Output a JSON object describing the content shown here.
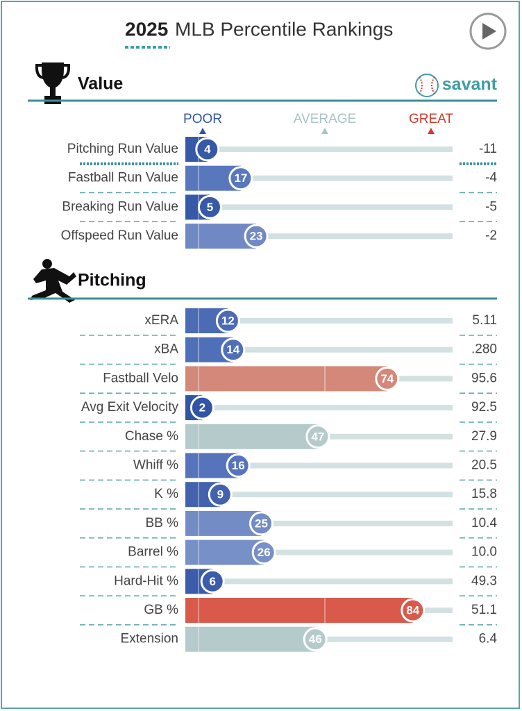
{
  "header": {
    "year": "2025",
    "title": "MLB Percentile Rankings"
  },
  "brand": "savant",
  "scale_labels": {
    "poor": "POOR",
    "average": "AVERAGE",
    "great": "GREAT"
  },
  "xlim": [
    0,
    100
  ],
  "sections": [
    {
      "title": "Value",
      "rows": [
        {
          "label": "Pitching Run Value",
          "percentile": 4,
          "value": "-11",
          "color": "#3659a8"
        },
        {
          "label": "Fastball Run Value",
          "percentile": 17,
          "value": "-4",
          "color": "#5877bd"
        },
        {
          "label": "Breaking Run Value",
          "percentile": 5,
          "value": "-5",
          "color": "#3659a8"
        },
        {
          "label": "Offspeed Run Value",
          "percentile": 23,
          "value": "-2",
          "color": "#7089c4"
        }
      ]
    },
    {
      "title": "Pitching",
      "rows": [
        {
          "label": "xERA",
          "percentile": 12,
          "value": "5.11",
          "color": "#4b6bb5"
        },
        {
          "label": "xBA",
          "percentile": 14,
          "value": ".280",
          "color": "#4f6fb8"
        },
        {
          "label": "Fastball Velo",
          "percentile": 74,
          "value": "95.6",
          "color": "#d4887a"
        },
        {
          "label": "Avg Exit Velocity",
          "percentile": 2,
          "value": "92.5",
          "color": "#2f55a4"
        },
        {
          "label": "Chase %",
          "percentile": 47,
          "value": "27.9",
          "color": "#b5cacb"
        },
        {
          "label": "Whiff %",
          "percentile": 16,
          "value": "20.5",
          "color": "#5574bb"
        },
        {
          "label": "K %",
          "percentile": 9,
          "value": "15.8",
          "color": "#4262ae"
        },
        {
          "label": "BB %",
          "percentile": 25,
          "value": "10.4",
          "color": "#748cc5"
        },
        {
          "label": "Barrel %",
          "percentile": 26,
          "value": "10.0",
          "color": "#7790c7"
        },
        {
          "label": "Hard-Hit %",
          "percentile": 6,
          "value": "49.3",
          "color": "#3a5caa"
        },
        {
          "label": "GB %",
          "percentile": 84,
          "value": "51.1",
          "color": "#d95a4b"
        },
        {
          "label": "Extension",
          "percentile": 46,
          "value": "6.4",
          "color": "#b5cacb"
        }
      ]
    }
  ]
}
